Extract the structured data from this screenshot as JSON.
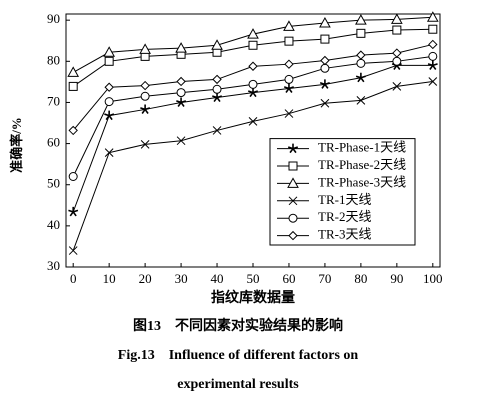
{
  "chart_data": {
    "type": "line",
    "xlabel": "指纹库数据量",
    "ylabel": "准确率/%",
    "caption_cn": "图13　不同因素对实验结果的影响",
    "caption_en": [
      "Fig.13　Influence of different factors on",
      "experimental results"
    ],
    "x": [
      0,
      10,
      20,
      30,
      40,
      50,
      60,
      70,
      80,
      90,
      100
    ],
    "xlim": [
      -2,
      102
    ],
    "ylim": [
      30,
      91.5
    ],
    "xticks": [
      0,
      10,
      20,
      30,
      40,
      50,
      60,
      70,
      80,
      90,
      100
    ],
    "yticks": [
      30,
      40,
      50,
      60,
      70,
      80,
      90
    ],
    "legend": "lower right",
    "color": "#000000",
    "series": [
      {
        "name": "TR-Phase-1天线",
        "marker": "star",
        "values": [
          43.4,
          66.8,
          68.3,
          70,
          71.2,
          72.4,
          73.4,
          74.4,
          76,
          79,
          79
        ]
      },
      {
        "name": "TR-Phase-2天线",
        "marker": "square",
        "values": [
          73.9,
          80,
          81.2,
          81.7,
          82.2,
          83.9,
          84.9,
          85.4,
          86.8,
          87.6,
          87.8
        ]
      },
      {
        "name": "TR-Phase-3天线",
        "marker": "triangle",
        "values": [
          77.3,
          82.2,
          82.9,
          83.2,
          83.9,
          86.6,
          88.5,
          89.3,
          90,
          90.2,
          90.7
        ]
      },
      {
        "name": "TR-1天线",
        "marker": "x",
        "values": [
          34,
          57.8,
          59.8,
          60.7,
          63.2,
          65.4,
          67.3,
          69.8,
          70.5,
          73.9,
          75.1
        ]
      },
      {
        "name": "TR-2天线",
        "marker": "circle",
        "values": [
          52,
          70.2,
          71.5,
          72.4,
          73.2,
          74.4,
          75.6,
          78.3,
          79.5,
          80,
          81.2
        ]
      },
      {
        "name": "TR-3天线",
        "marker": "diamond",
        "values": [
          63.2,
          73.7,
          74.1,
          75.1,
          75.6,
          78.8,
          79.3,
          80.2,
          81.5,
          82,
          84.1
        ]
      }
    ]
  }
}
